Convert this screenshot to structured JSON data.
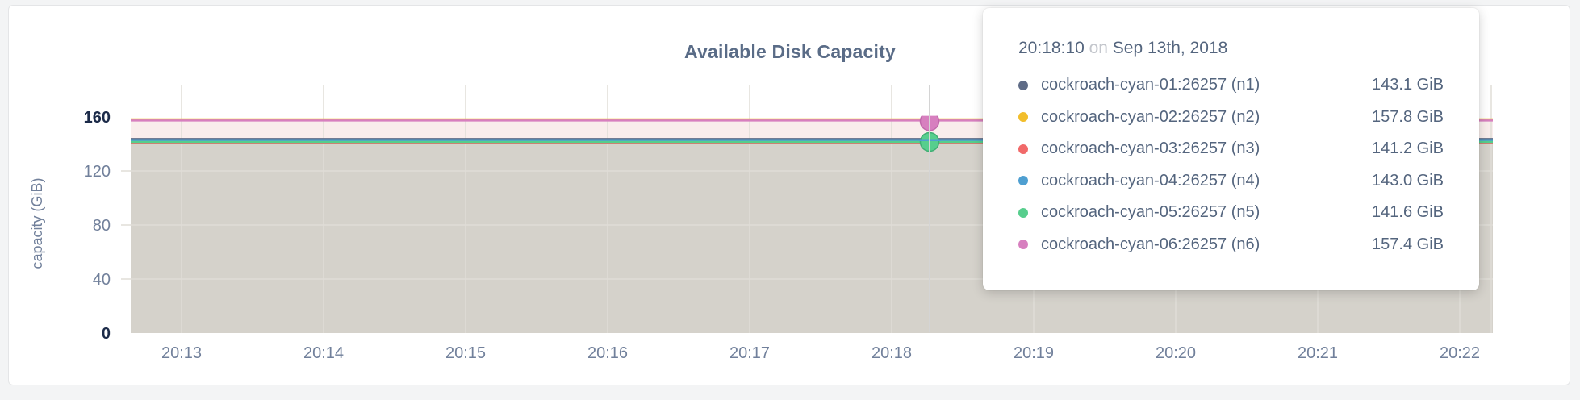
{
  "chart_data": {
    "type": "line",
    "title": "Available Disk Capacity",
    "ylabel": "capacity (GiB)",
    "xlabel": "",
    "x_ticks": [
      "20:13",
      "20:14",
      "20:15",
      "20:16",
      "20:17",
      "20:18",
      "20:19",
      "20:20",
      "20:21",
      "20:22"
    ],
    "y_ticks": [
      0,
      40,
      80,
      120,
      160
    ],
    "ylim": [
      0,
      160
    ],
    "grid": true,
    "legend_position": "hover-tooltip",
    "series": [
      {
        "name": "cockroach-cyan-01:26257 (n1)",
        "color": "#5F6C87",
        "value_gib": 143.1
      },
      {
        "name": "cockroach-cyan-02:26257 (n2)",
        "color": "#F2BE2C",
        "value_gib": 157.8
      },
      {
        "name": "cockroach-cyan-03:26257 (n3)",
        "color": "#F16969",
        "value_gib": 141.2
      },
      {
        "name": "cockroach-cyan-04:26257 (n4)",
        "color": "#4E9FD1",
        "value_gib": 143.0
      },
      {
        "name": "cockroach-cyan-05:26257 (n5)",
        "color": "#57CE8D",
        "value_gib": 141.6
      },
      {
        "name": "cockroach-cyan-06:26257 (n6)",
        "color": "#D77FBF",
        "value_gib": 157.4
      }
    ],
    "colors": {
      "upper_band_fill": "#f9edec",
      "lower_area_fill": "#d5d2cb",
      "grid_line": "#e0ddd7",
      "hover_guideline": "#d4d4d4"
    }
  },
  "tooltip": {
    "time": "20:18:10",
    "separator": "on",
    "date": "Sep 13th, 2018",
    "rows": [
      {
        "name": "cockroach-cyan-01:26257 (n1)",
        "value": "143.1 GiB",
        "color": "#5F6C87"
      },
      {
        "name": "cockroach-cyan-02:26257 (n2)",
        "value": "157.8 GiB",
        "color": "#F2BE2C"
      },
      {
        "name": "cockroach-cyan-03:26257 (n3)",
        "value": "141.2 GiB",
        "color": "#F16969"
      },
      {
        "name": "cockroach-cyan-04:26257 (n4)",
        "value": "143.0 GiB",
        "color": "#4E9FD1"
      },
      {
        "name": "cockroach-cyan-05:26257 (n5)",
        "value": "141.6 GiB",
        "color": "#57CE8D"
      },
      {
        "name": "cockroach-cyan-06:26257 (n6)",
        "value": "157.4 GiB",
        "color": "#D77FBF"
      }
    ]
  }
}
